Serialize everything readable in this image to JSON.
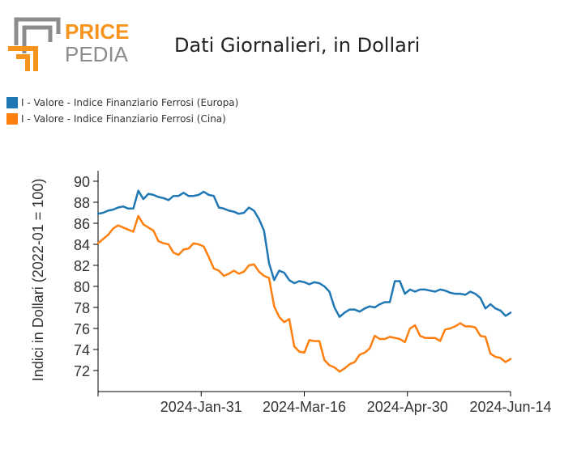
{
  "brand": {
    "line1": "PRICE",
    "line2": "PEDIA"
  },
  "colors": {
    "brand_orange": "#f7941d",
    "brand_gray": "#8c8c8c",
    "europa": "#1f77b4",
    "cina": "#ff7f0e"
  },
  "chart_data": {
    "type": "line",
    "title": "Dati Giornalieri, in Dollari",
    "ylabel": "Indici in Dollari (2022-01 = 100)",
    "xlabel": "",
    "ylim": [
      70,
      91
    ],
    "yticks": [
      72,
      74,
      76,
      78,
      80,
      82,
      84,
      86,
      88,
      90
    ],
    "xticks": [
      "",
      "2024-Jan-31",
      "2024-Mar-16",
      "2024-Apr-30",
      "2024-Jun-14"
    ],
    "grid": false,
    "legend_position": "top-left",
    "series": [
      {
        "name": "I - Valore - Indice Finanziario Ferrosi (Europa)",
        "color": "#1f77b4",
        "values": [
          86.9,
          87.0,
          87.2,
          87.3,
          87.5,
          87.6,
          87.4,
          87.4,
          89.1,
          88.3,
          88.8,
          88.7,
          88.5,
          88.4,
          88.2,
          88.6,
          88.6,
          88.9,
          88.6,
          88.6,
          88.7,
          89.0,
          88.7,
          88.6,
          87.5,
          87.4,
          87.2,
          87.1,
          86.9,
          87.0,
          87.5,
          87.2,
          86.4,
          85.3,
          82.2,
          80.6,
          81.5,
          81.3,
          80.6,
          80.3,
          80.5,
          80.4,
          80.2,
          80.4,
          80.3,
          80.0,
          79.5,
          78.0,
          77.1,
          77.5,
          77.8,
          77.8,
          77.6,
          77.9,
          78.1,
          78.0,
          78.3,
          78.5,
          78.5,
          80.5,
          80.5,
          79.3,
          79.7,
          79.5,
          79.7,
          79.7,
          79.6,
          79.5,
          79.7,
          79.6,
          79.4,
          79.3,
          79.3,
          79.2,
          79.5,
          79.3,
          78.9,
          77.9,
          78.3,
          77.9,
          77.7,
          77.2,
          77.5
        ]
      },
      {
        "name": "I - Valore - Indice Finanziario Ferrosi (Cina)",
        "color": "#ff7f0e",
        "values": [
          84.1,
          84.5,
          84.9,
          85.5,
          85.8,
          85.6,
          85.4,
          85.2,
          86.7,
          85.9,
          85.6,
          85.3,
          84.3,
          84.1,
          84.0,
          83.2,
          83.0,
          83.5,
          83.6,
          84.1,
          84.0,
          83.8,
          82.8,
          81.7,
          81.5,
          81.0,
          81.2,
          81.5,
          81.2,
          81.4,
          82.0,
          82.1,
          81.4,
          81.0,
          80.8,
          78.1,
          77.1,
          76.6,
          76.9,
          74.3,
          73.8,
          73.7,
          74.9,
          74.8,
          74.8,
          73.0,
          72.5,
          72.3,
          71.9,
          72.2,
          72.6,
          72.8,
          73.5,
          73.7,
          74.1,
          75.3,
          75.0,
          75.0,
          75.2,
          75.1,
          75.0,
          74.7,
          76.0,
          76.3,
          75.3,
          75.1,
          75.1,
          75.1,
          74.8,
          75.9,
          76.0,
          76.2,
          76.5,
          76.2,
          76.2,
          76.1,
          75.3,
          75.2,
          73.6,
          73.3,
          73.2,
          72.8,
          73.1
        ]
      }
    ]
  }
}
